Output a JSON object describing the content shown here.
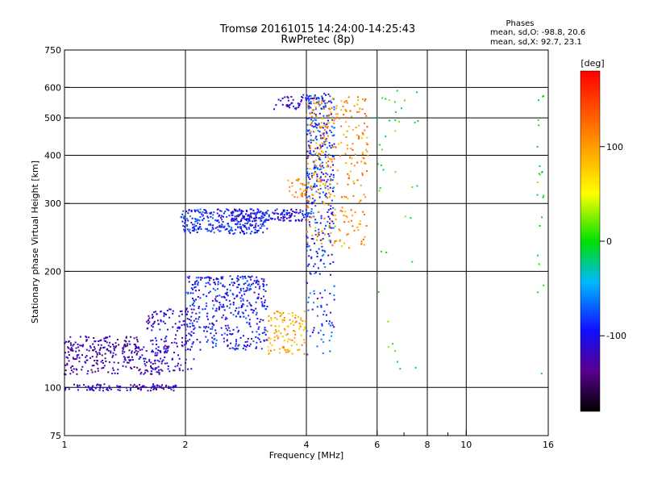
{
  "chart_data": {
    "type": "scatter",
    "title": "Tromsø 20161015 14:24:00-14:25:43",
    "subtitle": "RwPretec (8p)",
    "xlabel": "Frequency [MHz]",
    "ylabel": "Stationary phase Virtual Height [km]",
    "x_scale": "log",
    "y_scale": "log",
    "xlim": [
      1,
      16
    ],
    "ylim": [
      75,
      750
    ],
    "x_ticks": [
      1,
      2,
      4,
      6,
      8,
      10,
      16
    ],
    "x_tick_labels": [
      "1",
      "2",
      "4",
      "6",
      "8",
      "10",
      "16"
    ],
    "x_minor_ticks": [
      7,
      9
    ],
    "y_ticks": [
      75,
      100,
      200,
      300,
      400,
      500,
      600,
      750
    ],
    "y_tick_labels": [
      "75",
      "100",
      "200",
      "300",
      "400",
      "500",
      "600",
      "750"
    ],
    "grid_x": [
      2,
      4,
      6,
      8,
      10
    ],
    "grid_y": [
      100,
      200,
      300,
      400,
      500,
      600
    ],
    "phases_box": {
      "title": "Phases",
      "line1": "mean, sd,O: -98.8, 20.6",
      "line2": "mean, sd,X:  92.7, 23.1"
    },
    "colorbar": {
      "label": "[deg]",
      "range": [
        -180,
        180
      ],
      "ticks": [
        100,
        0,
        -100
      ],
      "tick_labels": [
        "100",
        "0",
        "-100"
      ],
      "colormap": "rainbow"
    },
    "series": [
      {
        "x_range": [
          1.0,
          1.9
        ],
        "y_center": 100,
        "y_spread": 2,
        "phase": -120,
        "n": 110
      },
      {
        "x_range": [
          1.0,
          1.8
        ],
        "y_center": 118,
        "y_spread": 10,
        "phase": -125,
        "n": 200
      },
      {
        "x_range": [
          1.0,
          1.55
        ],
        "y_center": 130,
        "y_spread": 6,
        "phase": -125,
        "n": 90
      },
      {
        "x_range": [
          1.6,
          2.1
        ],
        "y_center": 135,
        "y_spread": 25,
        "phase": -110,
        "n": 160
      },
      {
        "x_range": [
          2.0,
          3.2
        ],
        "y_center": 160,
        "y_spread": 35,
        "phase": -95,
        "n": 420
      },
      {
        "x_range": [
          1.95,
          3.2
        ],
        "y_center": 270,
        "y_spread": 20,
        "phase": -90,
        "n": 280
      },
      {
        "x_range": [
          2.6,
          4.0
        ],
        "y_center": 280,
        "y_spread": 10,
        "phase": -105,
        "n": 150
      },
      {
        "x_range": [
          3.2,
          4.0
        ],
        "y_center": 140,
        "y_spread": 18,
        "phase": 95,
        "n": 110
      },
      {
        "x_range": [
          3.6,
          4.0
        ],
        "y_center": 330,
        "y_spread": 20,
        "phase": 110,
        "n": 30
      },
      {
        "x_range": [
          4.0,
          4.7
        ],
        "y_center": 350,
        "y_spread": 230,
        "phase": -85,
        "n": 420
      },
      {
        "x_range": [
          4.0,
          5.7
        ],
        "y_center": 400,
        "y_spread": 170,
        "phase": 110,
        "n": 320
      },
      {
        "x_range": [
          3.3,
          4.1
        ],
        "y_center": 550,
        "y_spread": 25,
        "phase": -110,
        "n": 40
      },
      {
        "x_range": [
          6.0,
          7.6
        ],
        "y_center": 350,
        "y_spread": 250,
        "phase": 0,
        "n": 40
      },
      {
        "x_range": [
          15.0,
          15.6
        ],
        "y_center": 350,
        "y_spread": 250,
        "phase": 0,
        "n": 22
      }
    ]
  }
}
